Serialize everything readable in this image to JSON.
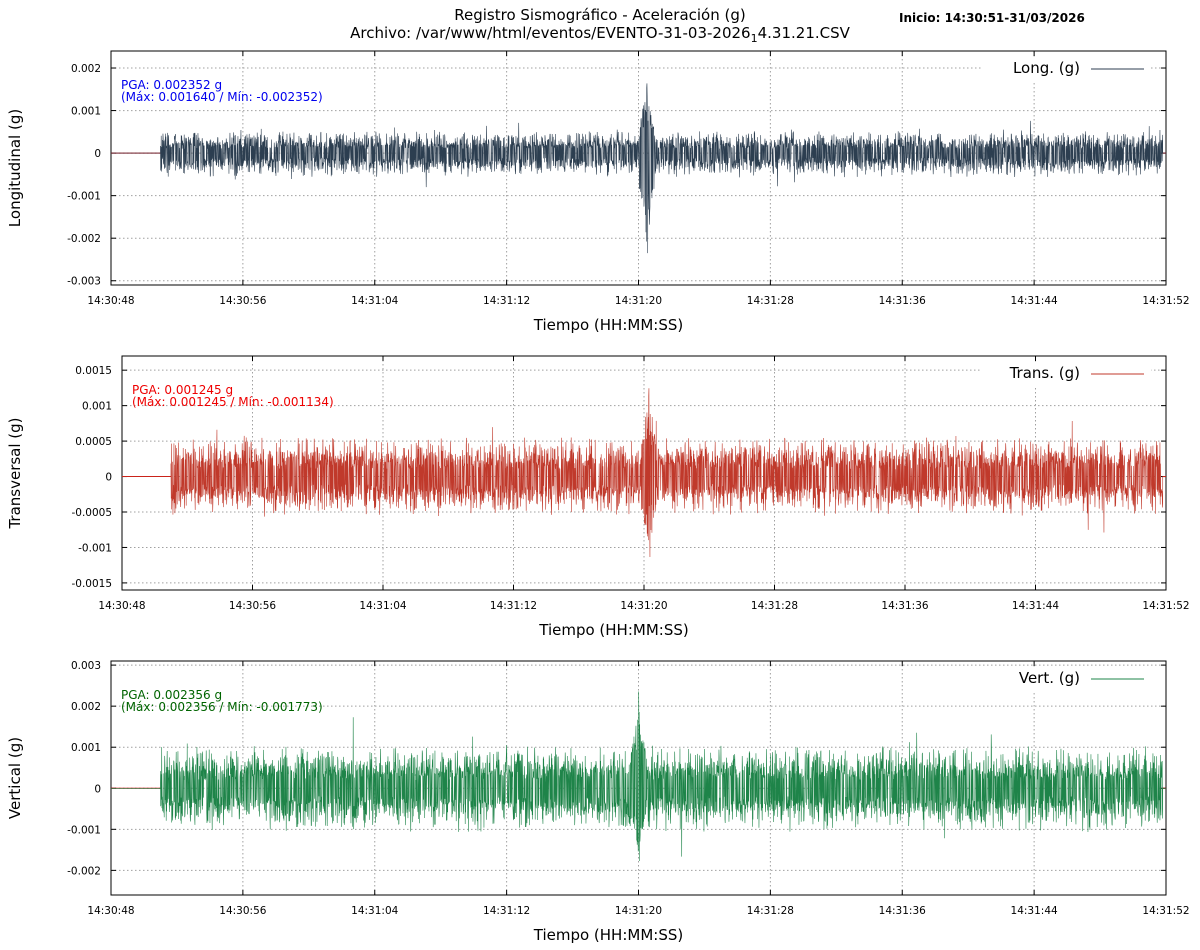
{
  "title": {
    "line1": "Registro Sismográfico - Aceleración (g)",
    "line2_pre": "Archivo: /var/www/html/eventos/EVENTO-31-03-2026",
    "line2_sub": "1",
    "line2_post": "4.31.21.CSV"
  },
  "start_label": "Inicio: 14:30:51-31/03/2026",
  "chart_data": [
    {
      "type": "line",
      "ylabel": "Longitudinal (g)",
      "xlabel": "Tiempo (HH:MM:SS)",
      "series": [
        {
          "name": "Long. (g)",
          "color": "#2c3e50"
        }
      ],
      "pga_text": "PGA: 0.002352 g",
      "range_text": "(Máx: 0.001640 / Mín: -0.002352)",
      "annotation_color": "#0000ee",
      "max": 0.00164,
      "min": -0.002352,
      "noise": 0.00058,
      "ylim": [
        -0.0031,
        0.0024
      ],
      "yticks": [
        0.002,
        0.001,
        0,
        -0.001,
        -0.002,
        -0.003
      ],
      "ytick_labels": [
        "0.002",
        "0.001",
        "0",
        "-0.001",
        "-0.002",
        "-0.003"
      ],
      "xlim": [
        "14:30:48",
        "14:31:52"
      ],
      "xticks": [
        "14:30:48",
        "14:30:56",
        "14:31:04",
        "14:31:12",
        "14:31:20",
        "14:31:28",
        "14:31:36",
        "14:31:44",
        "14:31:52"
      ],
      "signal_range": [
        "14:30:51",
        "14:31:51.8"
      ],
      "peak_time": "14:31:20.5",
      "grid": true,
      "legend": "top-right"
    },
    {
      "type": "line",
      "ylabel": "Transversal (g)",
      "xlabel": "Tiempo (HH:MM:SS)",
      "series": [
        {
          "name": "Trans. (g)",
          "color": "#c0392b"
        }
      ],
      "pga_text": "PGA: 0.001245 g",
      "range_text": "(Máx: 0.001245 / Mín: -0.001134)",
      "annotation_color": "#ee0000",
      "max": 0.001245,
      "min": -0.001134,
      "noise": 0.00058,
      "ylim": [
        -0.0016,
        0.0017
      ],
      "yticks": [
        0.0015,
        0.001,
        0.0005,
        0,
        -0.0005,
        -0.001,
        -0.0015
      ],
      "ytick_labels": [
        "0.0015",
        "0.001",
        "0.0005",
        "0",
        "-0.0005",
        "-0.001",
        "-0.0015"
      ],
      "xlim": [
        "14:30:48",
        "14:31:52"
      ],
      "xticks": [
        "14:30:48",
        "14:30:56",
        "14:31:04",
        "14:31:12",
        "14:31:20",
        "14:31:28",
        "14:31:36",
        "14:31:44",
        "14:31:52"
      ],
      "signal_range": [
        "14:30:51",
        "14:31:51.8"
      ],
      "peak_time": "14:31:20.3",
      "grid": true,
      "legend": "top-right"
    },
    {
      "type": "line",
      "ylabel": "Vertical (g)",
      "xlabel": "Tiempo (HH:MM:SS)",
      "series": [
        {
          "name": "Vert. (g)",
          "color": "#1e8449"
        }
      ],
      "pga_text": "PGA: 0.002356 g",
      "range_text": "(Máx: 0.002356 / Mín: -0.001773)",
      "annotation_color": "#006400",
      "max": 0.002356,
      "min": -0.001773,
      "noise": 0.0011,
      "ylim": [
        -0.0026,
        0.0031
      ],
      "yticks": [
        0.003,
        0.002,
        0.001,
        0,
        -0.001,
        -0.002
      ],
      "ytick_labels": [
        "0.003",
        "0.002",
        "0.001",
        "0",
        "-0.001",
        "-0.002"
      ],
      "xlim": [
        "14:30:48",
        "14:31:52"
      ],
      "xticks": [
        "14:30:48",
        "14:30:56",
        "14:31:04",
        "14:31:12",
        "14:31:20",
        "14:31:28",
        "14:31:36",
        "14:31:44",
        "14:31:52"
      ],
      "signal_range": [
        "14:30:51",
        "14:31:51.8"
      ],
      "peak_time": "14:31:20",
      "grid": true,
      "legend": "top-right"
    }
  ]
}
